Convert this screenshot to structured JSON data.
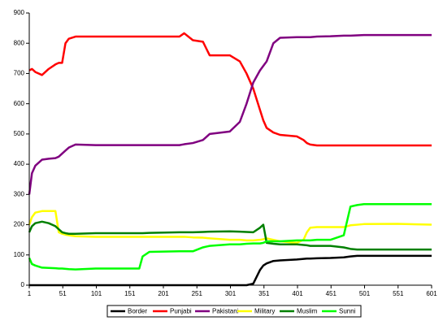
{
  "chart_data": {
    "type": "line",
    "x": [
      1,
      5,
      10,
      20,
      30,
      40,
      45,
      50,
      55,
      60,
      70,
      100,
      165,
      170,
      180,
      225,
      232,
      245,
      260,
      270,
      300,
      315,
      325,
      335,
      345,
      350,
      355,
      365,
      375,
      400,
      410,
      415,
      420,
      430,
      450,
      470,
      480,
      490,
      500,
      550,
      601
    ],
    "series": [
      {
        "name": "Border",
        "color": "#000000",
        "values": [
          0,
          0,
          0,
          0,
          0,
          0,
          0,
          0,
          0,
          0,
          0,
          0,
          0,
          0,
          0,
          0,
          0,
          0,
          0,
          0,
          0,
          0,
          0,
          5,
          50,
          65,
          72,
          80,
          82,
          85,
          87,
          88,
          88,
          89,
          90,
          92,
          95,
          97,
          97,
          97,
          97
        ]
      },
      {
        "name": "Punjabi",
        "color": "#ff0000",
        "values": [
          710,
          715,
          705,
          695,
          715,
          730,
          735,
          735,
          800,
          815,
          822,
          822,
          822,
          822,
          822,
          822,
          833,
          810,
          805,
          760,
          760,
          740,
          700,
          650,
          580,
          545,
          520,
          505,
          497,
          492,
          480,
          470,
          465,
          462,
          462,
          462,
          462,
          462,
          462,
          462,
          462
        ]
      },
      {
        "name": "Pakistani",
        "color": "#800080",
        "values": [
          300,
          370,
          395,
          415,
          418,
          420,
          425,
          435,
          445,
          455,
          465,
          463,
          463,
          463,
          463,
          463,
          466,
          470,
          480,
          500,
          508,
          540,
          600,
          670,
          710,
          725,
          740,
          800,
          818,
          820,
          820,
          820,
          820,
          822,
          823,
          825,
          825,
          826,
          827,
          827,
          827
        ]
      },
      {
        "name": "Military",
        "color": "#ffff00",
        "values": [
          200,
          225,
          240,
          245,
          245,
          245,
          175,
          170,
          167,
          165,
          162,
          160,
          160,
          160,
          160,
          160,
          160,
          158,
          157,
          155,
          150,
          150,
          148,
          148,
          150,
          152,
          155,
          150,
          145,
          140,
          150,
          175,
          190,
          192,
          192,
          192,
          198,
          200,
          202,
          203,
          200
        ]
      },
      {
        "name": "Muslim",
        "color": "#008000",
        "values": [
          175,
          195,
          205,
          210,
          205,
          195,
          185,
          175,
          172,
          170,
          170,
          172,
          172,
          172,
          173,
          175,
          175,
          175,
          176,
          177,
          178,
          177,
          176,
          175,
          190,
          200,
          140,
          137,
          135,
          135,
          133,
          132,
          130,
          130,
          130,
          125,
          120,
          118,
          118,
          118,
          118
        ]
      },
      {
        "name": "Sunni",
        "color": "#00ff00",
        "values": [
          90,
          70,
          65,
          58,
          57,
          56,
          55,
          55,
          54,
          53,
          52,
          55,
          55,
          95,
          110,
          112,
          112,
          112,
          125,
          130,
          135,
          135,
          137,
          138,
          138,
          140,
          145,
          145,
          145,
          148,
          148,
          148,
          148,
          150,
          150,
          165,
          260,
          265,
          268,
          268,
          268
        ]
      }
    ],
    "xlim": [
      1,
      601
    ],
    "xticks": [
      1,
      51,
      101,
      151,
      201,
      251,
      301,
      351,
      401,
      451,
      501,
      551,
      601
    ],
    "ylim": [
      0,
      900
    ],
    "yticks": [
      0,
      100,
      200,
      300,
      400,
      500,
      600,
      700,
      800,
      900
    ],
    "grid": false,
    "legend": "bottom"
  }
}
